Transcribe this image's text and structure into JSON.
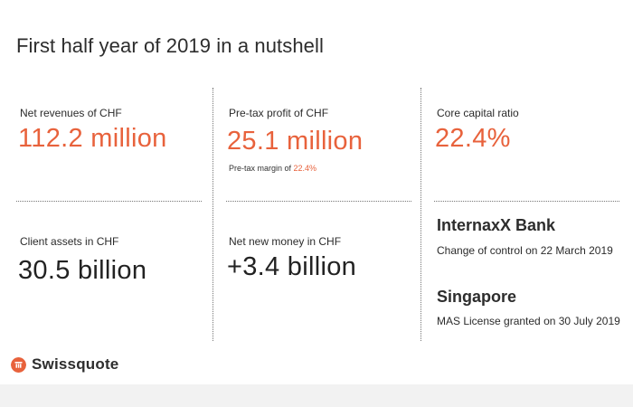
{
  "title": "First half year of 2019 in a nutshell",
  "metrics": {
    "net_revenues": {
      "label": "Net revenues of CHF",
      "value": "112.2 million"
    },
    "pretax_profit": {
      "label": "Pre-tax profit of CHF",
      "value": "25.1 million",
      "note_prefix": "Pre-tax margin of ",
      "note_value": "22.4%"
    },
    "core_capital": {
      "label": "Core capital ratio",
      "value": "22.4%"
    },
    "client_assets": {
      "label": "Client assets in CHF",
      "value": "30.5 billion"
    },
    "net_new_money": {
      "label": "Net new money in CHF",
      "value": "+3.4 billion"
    }
  },
  "news": {
    "internaxx": {
      "heading": "InternaxX Bank",
      "text": "Change of control on 22 March 2019"
    },
    "singapore": {
      "heading": "Singapore",
      "text": "MAS License granted on 30 July 2019"
    }
  },
  "logo": {
    "text": "Swissquote",
    "icon": "swissquote-logo-icon"
  },
  "colors": {
    "accent": "#e8623c",
    "text": "#2d2d2d"
  }
}
